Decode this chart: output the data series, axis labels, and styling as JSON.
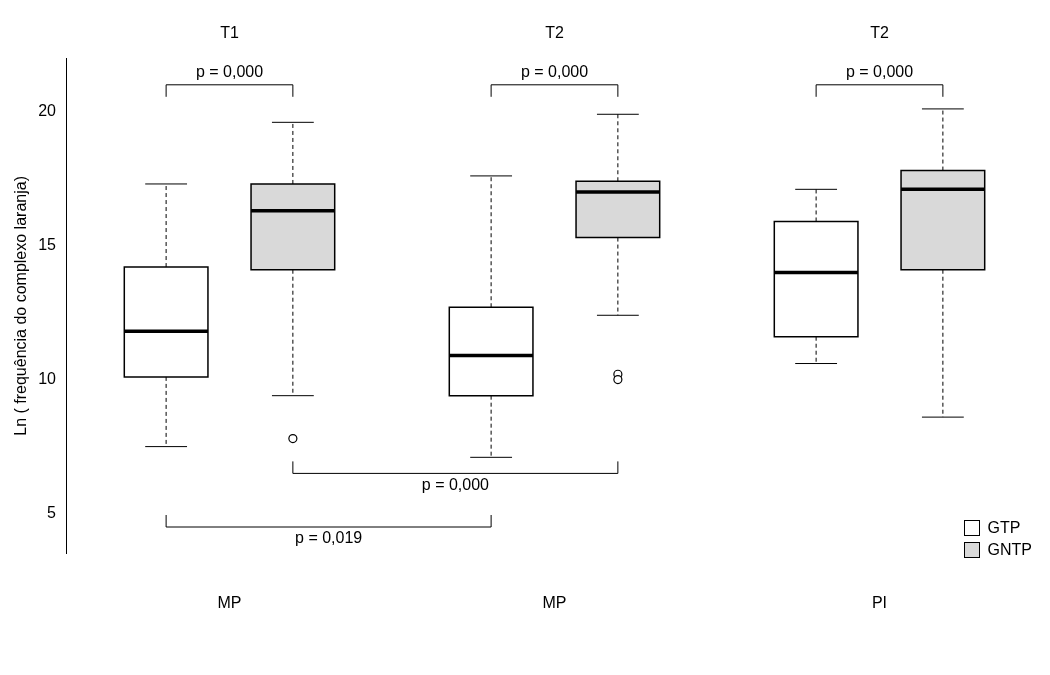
{
  "chart_data": {
    "type": "box",
    "categories": [
      "MP",
      "MP",
      "PI"
    ],
    "series": [
      {
        "name": "GTP",
        "color": "#ffffff",
        "boxes": [
          {
            "low": 7.5,
            "q1": 10.1,
            "median": 11.8,
            "q3": 14.2,
            "high": 17.3
          },
          {
            "low": 7.1,
            "q1": 9.4,
            "median": 10.9,
            "q3": 12.7,
            "high": 17.6
          },
          {
            "low": 10.6,
            "q1": 11.6,
            "median": 14.0,
            "q3": 15.9,
            "high": 17.1
          }
        ]
      },
      {
        "name": "GNTP",
        "color": "#d9d9d9",
        "boxes": [
          {
            "low": 9.4,
            "q1": 14.1,
            "median": 16.3,
            "q3": 17.3,
            "high": 19.6,
            "outliers": [
              7.8
            ]
          },
          {
            "low": 12.4,
            "q1": 15.3,
            "median": 17.0,
            "q3": 17.4,
            "high": 19.9,
            "outliers": [
              10.2,
              10.0
            ]
          },
          {
            "low": 8.6,
            "q1": 14.1,
            "median": 17.1,
            "q3": 17.8,
            "high": 20.1
          }
        ]
      }
    ],
    "ylabel": "Ln ( frequência do complexo laranja)",
    "ylim": [
      3.5,
      22
    ],
    "yticks": [
      5,
      10,
      15,
      20
    ],
    "annotations": [
      "T1",
      "T2",
      "T2",
      "p = 0,000",
      "p = 0,000",
      "p = 0,000",
      "p = 0,000",
      "p = 0,019"
    ],
    "legend": "bottom right",
    "grid": false
  }
}
